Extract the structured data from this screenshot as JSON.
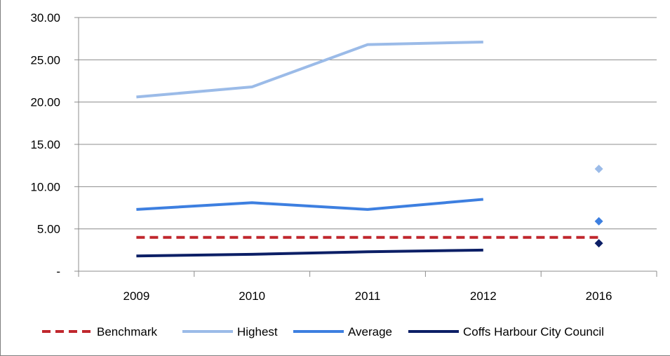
{
  "chart_data": {
    "type": "line",
    "categories": [
      "2009",
      "2010",
      "2011",
      "2012",
      "2016"
    ],
    "yticks": [
      0,
      5,
      10,
      15,
      20,
      25,
      30
    ],
    "ytick_labels": [
      "-",
      "5.00",
      "10.00",
      "15.00",
      "20.00",
      "25.00",
      "30.00"
    ],
    "ylim": [
      0,
      30
    ],
    "grid": true,
    "legend_position": "bottom",
    "series": [
      {
        "name": "Benchmark",
        "color": "#c0272d",
        "style": "dashed",
        "values": [
          4.0,
          4.0,
          4.0,
          4.0,
          4.0
        ]
      },
      {
        "name": "Highest",
        "color": "#9bbbe8",
        "style": "solid",
        "values": [
          20.6,
          21.8,
          26.8,
          27.1,
          12.1
        ]
      },
      {
        "name": "Average",
        "color": "#3d7fe0",
        "style": "solid",
        "values": [
          7.3,
          8.1,
          7.3,
          8.5,
          5.9
        ]
      },
      {
        "name": "Coffs Harbour City Council",
        "color": "#0c1f66",
        "style": "solid",
        "values": [
          1.8,
          2.0,
          2.3,
          2.5,
          3.3
        ]
      }
    ],
    "point_only_index": 4
  }
}
